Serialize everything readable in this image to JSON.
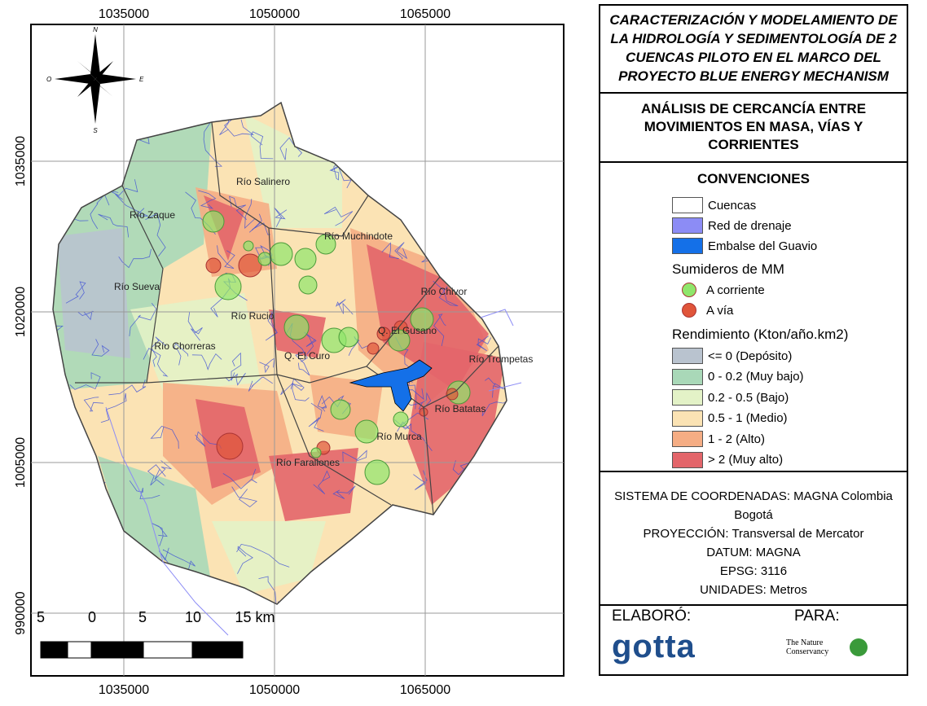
{
  "title": "CARACTERIZACIÓN Y MODELAMIENTO DE LA HIDROLOGÍA Y SEDIMENTOLOGÍA DE 2 CUENCAS PILOTO EN EL MARCO DEL PROYECTO BLUE ENERGY MECHANISM",
  "subtitle": "ANÁLISIS DE CERCANCÍA ENTRE MOVIMIENTOS EN MASA, VÍAS Y CORRIENTES",
  "map": {
    "x_ticks": [
      1035000,
      1050000,
      1065000
    ],
    "y_ticks": [
      1035000,
      1020000,
      1005000,
      990000
    ],
    "north_arrow": {
      "n": "N",
      "s": "S",
      "e": "E",
      "w": "O"
    },
    "basin_labels": [
      "Río Salinero",
      "Río Zaque",
      "Río Muchindote",
      "Río Sueva",
      "Río Chivor",
      "Río Rucio",
      "Q. El Gusano",
      "Río Chorreras",
      "Río Trompetas",
      "Q. El Curo",
      "Río Batatas",
      "Río Murca",
      "Río Farallones"
    ],
    "scale_bar": [
      "5",
      "0",
      "5",
      "10",
      "15 km"
    ]
  },
  "legend": {
    "title": "CONVENCIONES",
    "layers": [
      {
        "label": "Cuencas",
        "color": "#ffffff"
      },
      {
        "label": "Red de drenaje",
        "color": "#8c8cf5"
      },
      {
        "label": "Embalse del Guavio",
        "color": "#1470e8"
      }
    ],
    "sinks_title": "Sumideros de MM",
    "sinks": [
      {
        "label": "A corriente",
        "color": "#8fe66b"
      },
      {
        "label": "A vía",
        "color": "#e0553a"
      }
    ],
    "yield_title": "Rendimiento (Kton/año.km2)",
    "yield_classes": [
      {
        "label": "<= 0 (Depósito)",
        "color": "#b9c3cf"
      },
      {
        "label": "0 - 0.2 (Muy bajo)",
        "color": "#a9d8b8"
      },
      {
        "label": "0.2 - 0.5 (Bajo)",
        "color": "#e3f2c7"
      },
      {
        "label": "0.5 - 1 (Medio)",
        "color": "#fbe3b4"
      },
      {
        "label": "1 - 2 (Alto)",
        "color": "#f5ad84"
      },
      {
        "label": "> 2 (Muy alto)",
        "color": "#e3656a"
      }
    ]
  },
  "coordinates": [
    "SISTEMA DE COORDENADAS: MAGNA Colombia",
    "Bogotá",
    "PROYECCIÓN: Transversal de Mercator",
    "DATUM: MAGNA",
    "EPSG: 3116",
    "UNIDADES: Metros"
  ],
  "credits": {
    "made_by": "ELABORÓ:",
    "made_by_logo": "gotta",
    "for": "PARA:",
    "for_logo": "The Nature Conservancy"
  }
}
